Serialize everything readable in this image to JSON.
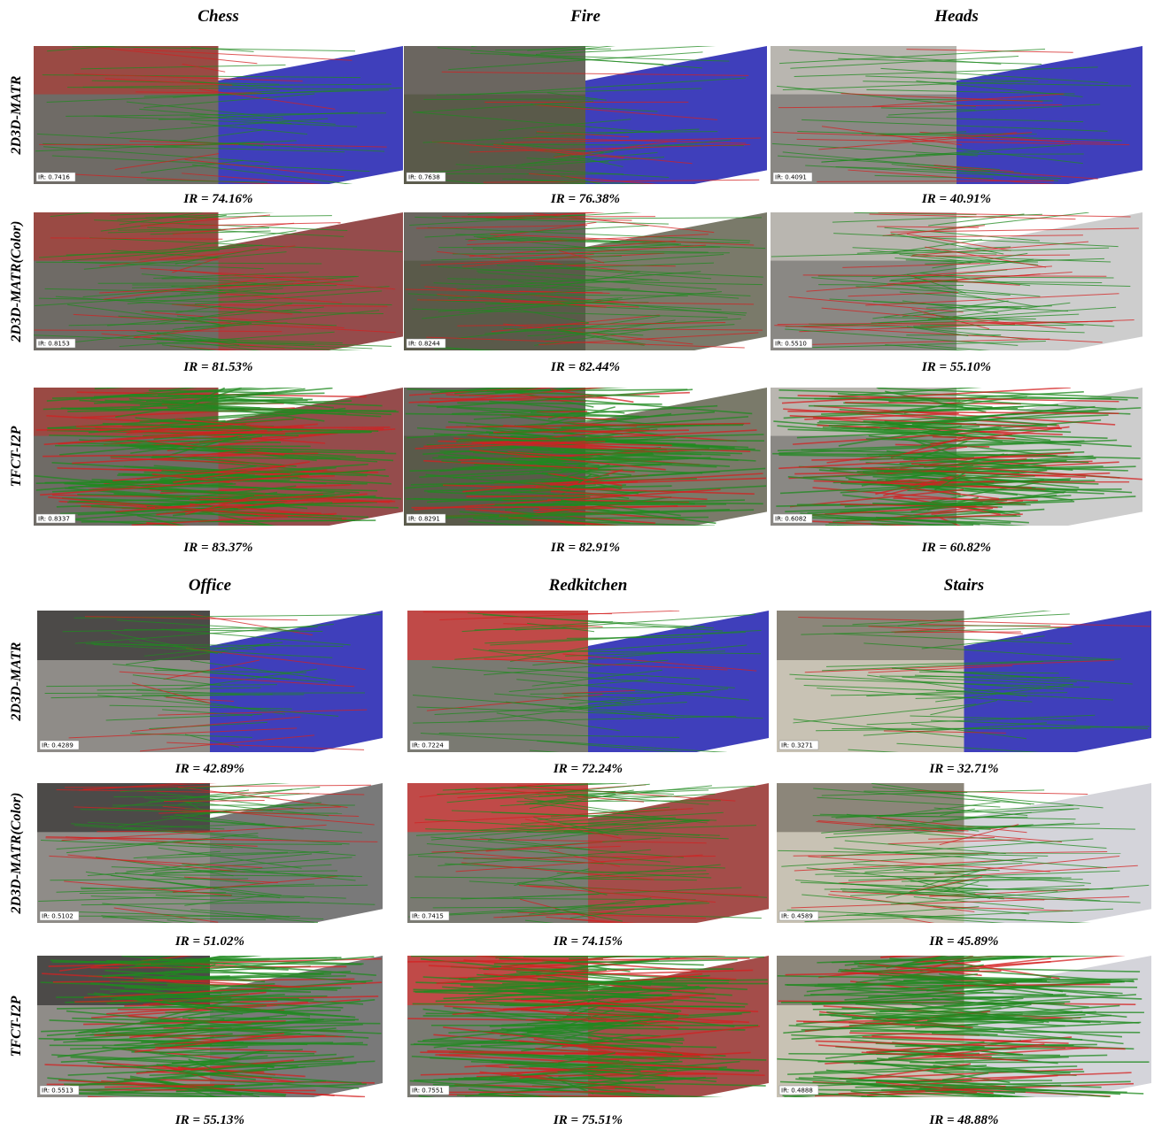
{
  "blocks": [
    {
      "scenes": [
        "Chess",
        "Fire",
        "Heads"
      ],
      "methods": [
        "2D3D-MATR",
        "2D3D-MATR(Color)",
        "TFCT-I2P"
      ],
      "cells": [
        [
          {
            "badge": "IR: 0.7416",
            "caption": "IR = 74.16%"
          },
          {
            "badge": "IR: 0.7638",
            "caption": "IR = 76.38%"
          },
          {
            "badge": "IR: 0.4091",
            "caption": "IR = 40.91%"
          }
        ],
        [
          {
            "badge": "IR: 0.8153",
            "caption": "IR = 81.53%"
          },
          {
            "badge": "IR: 0.8244",
            "caption": "IR = 82.44%"
          },
          {
            "badge": "IR: 0.5510",
            "caption": "IR = 55.10%"
          }
        ],
        [
          {
            "badge": "IR: 0.8337",
            "caption": "IR = 83.37%"
          },
          {
            "badge": "IR: 0.8291",
            "caption": "IR = 82.91%"
          },
          {
            "badge": "IR: 0.6082",
            "caption": "IR = 60.82%"
          }
        ]
      ]
    },
    {
      "scenes": [
        "Office",
        "Redkitchen",
        "Stairs"
      ],
      "methods": [
        "2D3D-MATR",
        "2D3D-MATR(Color)",
        "TFCT-I2P"
      ],
      "cells": [
        [
          {
            "badge": "IR: 0.4289",
            "caption": "IR = 42.89%"
          },
          {
            "badge": "IR: 0.7224",
            "caption": "IR = 72.24%"
          },
          {
            "badge": "IR: 0.3271",
            "caption": "IR = 32.71%"
          }
        ],
        [
          {
            "badge": "IR: 0.5102",
            "caption": "IR = 51.02%"
          },
          {
            "badge": "IR: 0.7415",
            "caption": "IR = 74.15%"
          },
          {
            "badge": "IR: 0.4589",
            "caption": "IR = 45.89%"
          }
        ],
        [
          {
            "badge": "IR: 0.5513",
            "caption": "IR = 55.13%"
          },
          {
            "badge": "IR: 0.7551",
            "caption": "IR = 75.51%"
          },
          {
            "badge": "IR: 0.4888",
            "caption": "IR = 48.88%"
          }
        ]
      ]
    }
  ]
}
